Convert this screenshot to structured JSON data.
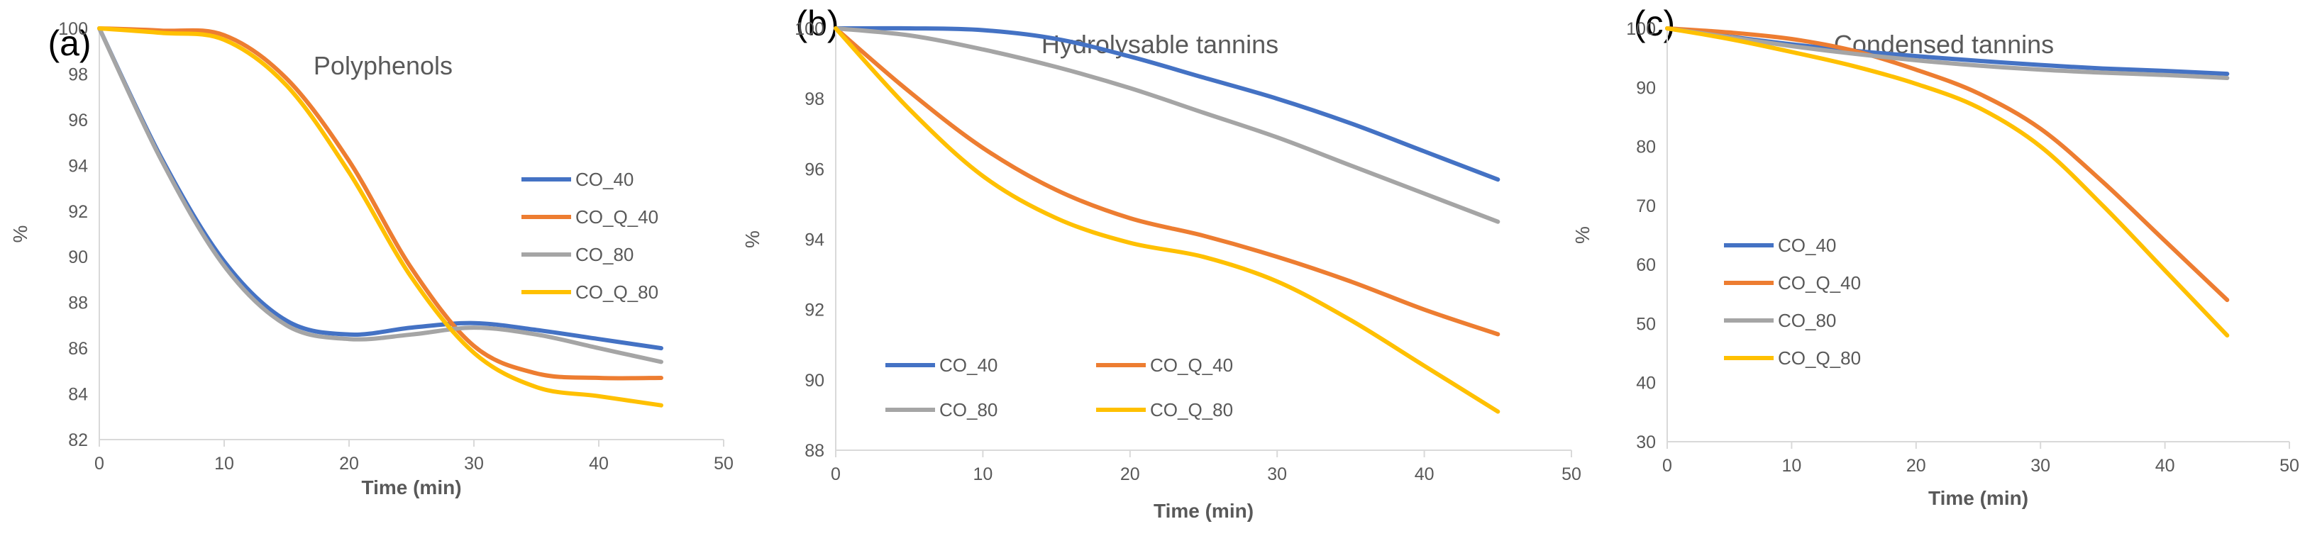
{
  "figure": {
    "colors": {
      "axis": "#d9d9d9",
      "text": "#595959",
      "panel_label": "#000000"
    }
  },
  "chart_data": [
    {
      "panel_label": "(a)",
      "type": "line",
      "title": "Polyphenols",
      "xlabel": "Time (min)",
      "ylabel": "%",
      "xlim": [
        0,
        50
      ],
      "ylim": [
        82,
        100
      ],
      "xticks": [
        0,
        10,
        20,
        30,
        40,
        50
      ],
      "yticks": [
        82,
        84,
        86,
        88,
        90,
        92,
        94,
        96,
        98,
        100
      ],
      "legend_position": "right",
      "series": [
        {
          "name": "CO_40",
          "color": "#4472C4",
          "x": [
            0,
            5,
            10,
            15,
            20,
            25,
            30,
            35,
            40,
            45
          ],
          "y": [
            100,
            94.3,
            89.8,
            87.2,
            86.6,
            86.9,
            87.1,
            86.8,
            86.4,
            86.0
          ]
        },
        {
          "name": "CO_Q_40",
          "color": "#ED7D31",
          "x": [
            0,
            5,
            10,
            15,
            20,
            25,
            30,
            35,
            40,
            45
          ],
          "y": [
            100,
            99.9,
            99.7,
            97.8,
            94.2,
            89.5,
            86.1,
            84.9,
            84.7,
            84.7
          ]
        },
        {
          "name": "CO_80",
          "color": "#A5A5A5",
          "x": [
            0,
            5,
            10,
            15,
            20,
            25,
            30,
            35,
            40,
            45
          ],
          "y": [
            100,
            94.2,
            89.6,
            87.0,
            86.4,
            86.6,
            86.9,
            86.6,
            86.0,
            85.4
          ]
        },
        {
          "name": "CO_Q_80",
          "color": "#FFC000",
          "x": [
            0,
            5,
            10,
            15,
            20,
            25,
            30,
            35,
            40,
            45
          ],
          "y": [
            100,
            99.8,
            99.5,
            97.5,
            93.7,
            89.1,
            85.8,
            84.3,
            83.9,
            83.5
          ]
        }
      ]
    },
    {
      "panel_label": "(b)",
      "type": "line",
      "title": "Hydrolysable tannins",
      "xlabel": "Time (min)",
      "ylabel": "%",
      "xlim": [
        0,
        50
      ],
      "ylim": [
        88,
        100
      ],
      "xticks": [
        0,
        10,
        20,
        30,
        40,
        50
      ],
      "yticks": [
        88,
        90,
        92,
        94,
        96,
        98,
        100
      ],
      "legend_position": "bottom-left",
      "series": [
        {
          "name": "CO_40",
          "color": "#4472C4",
          "x": [
            0,
            5,
            10,
            15,
            20,
            25,
            30,
            35,
            40,
            45
          ],
          "y": [
            100,
            100,
            99.95,
            99.7,
            99.2,
            98.6,
            98.0,
            97.3,
            96.5,
            95.7
          ]
        },
        {
          "name": "CO_Q_40",
          "color": "#ED7D31",
          "x": [
            0,
            5,
            10,
            15,
            20,
            25,
            30,
            35,
            40,
            45
          ],
          "y": [
            100,
            98.2,
            96.6,
            95.4,
            94.6,
            94.1,
            93.5,
            92.8,
            92.0,
            91.3
          ]
        },
        {
          "name": "CO_80",
          "color": "#A5A5A5",
          "x": [
            0,
            5,
            10,
            15,
            20,
            25,
            30,
            35,
            40,
            45
          ],
          "y": [
            100,
            99.8,
            99.4,
            98.9,
            98.3,
            97.6,
            96.9,
            96.1,
            95.3,
            94.5
          ]
        },
        {
          "name": "CO_Q_80",
          "color": "#FFC000",
          "x": [
            0,
            5,
            10,
            15,
            20,
            25,
            30,
            35,
            40,
            45
          ],
          "y": [
            100,
            97.7,
            95.8,
            94.6,
            93.9,
            93.5,
            92.8,
            91.7,
            90.4,
            89.1
          ]
        }
      ]
    },
    {
      "panel_label": "(c)",
      "type": "line",
      "title": "Condensed tannins",
      "xlabel": "Time (min)",
      "ylabel": "%",
      "xlim": [
        0,
        50
      ],
      "ylim": [
        30,
        100
      ],
      "xticks": [
        0,
        10,
        20,
        30,
        40,
        50
      ],
      "yticks": [
        30,
        40,
        50,
        60,
        70,
        80,
        90,
        100
      ],
      "legend_position": "left",
      "series": [
        {
          "name": "CO_40",
          "color": "#4472C4",
          "x": [
            0,
            5,
            10,
            15,
            20,
            25,
            30,
            35,
            40,
            45
          ],
          "y": [
            100,
            98.6,
            97.3,
            96.2,
            95.3,
            94.5,
            93.8,
            93.2,
            92.8,
            92.3
          ]
        },
        {
          "name": "CO_Q_40",
          "color": "#ED7D31",
          "x": [
            0,
            5,
            10,
            15,
            20,
            25,
            30,
            35,
            40,
            45
          ],
          "y": [
            100,
            99.3,
            98.2,
            96.2,
            93.0,
            89.0,
            83.0,
            74.0,
            64.0,
            54.0
          ]
        },
        {
          "name": "CO_80",
          "color": "#A5A5A5",
          "x": [
            0,
            5,
            10,
            15,
            20,
            25,
            30,
            35,
            40,
            45
          ],
          "y": [
            100,
            98.5,
            97.0,
            95.7,
            94.6,
            93.7,
            93.0,
            92.5,
            92.1,
            91.6
          ]
        },
        {
          "name": "CO_Q_80",
          "color": "#FFC000",
          "x": [
            0,
            5,
            10,
            15,
            20,
            25,
            30,
            35,
            40,
            45
          ],
          "y": [
            100,
            98.2,
            96.0,
            93.6,
            90.6,
            86.6,
            80.0,
            70.0,
            59.0,
            48.0
          ]
        }
      ]
    }
  ]
}
